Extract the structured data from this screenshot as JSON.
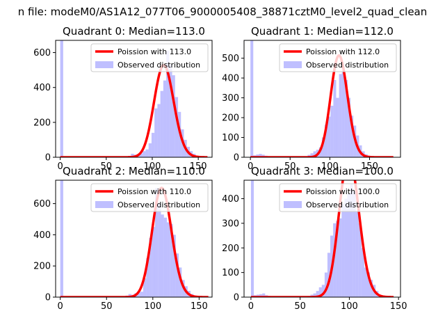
{
  "figure": {
    "suptitle": "n file: modeM0/AS1A12_077T06_9000005408_38871cztM0_level2_quad_clean"
  },
  "colors": {
    "hist": "#7f7fff",
    "hist_opacity": 0.5,
    "fit": "#ff0000"
  },
  "chart_data": [
    {
      "type": "bar",
      "title": "Quadrant 0: Median=113.0",
      "xlim": [
        -5,
        165
      ],
      "ylim": [
        0,
        670
      ],
      "xticks": [
        0,
        50,
        100,
        150
      ],
      "yticks": [
        0,
        200,
        400,
        600
      ],
      "legend": {
        "placement": "upper right",
        "entries": [
          "Poission with 113.0",
          "Observed distribution"
        ]
      },
      "series": [
        {
          "name": "Observed distribution",
          "bins": {
            "x": [
              0,
              3.2,
              6.4,
              9.6,
              12.8,
              16,
              19.2,
              22.4,
              25.6,
              28.8,
              32,
              35.2,
              38.4,
              41.6,
              44.8,
              48,
              51.2,
              54.4,
              57.6,
              60.8,
              64,
              67.2,
              70.4,
              73.6,
              76.8,
              80,
              83.2,
              86.4,
              89.6,
              92.8,
              96,
              99.2,
              102.4,
              105.6,
              108.8,
              112,
              115.2,
              118.4,
              121.6,
              124.8,
              128,
              131.2,
              134.4,
              137.6,
              140.8,
              144,
              147.2,
              150.4,
              153.6,
              156.8
            ],
            "width": 3.2,
            "values": [
              670,
              2,
              1,
              0,
              1,
              0,
              0,
              0,
              0,
              0,
              0,
              0,
              0,
              0,
              0,
              0,
              0,
              0,
              0,
              0,
              0,
              1,
              2,
              8,
              20,
              15,
              12,
              22,
              35,
              45,
              80,
              140,
              280,
              305,
              380,
              440,
              610,
              530,
              470,
              345,
              260,
              160,
              100,
              60,
              35,
              20,
              10,
              5,
              2,
              1
            ]
          }
        },
        {
          "name": "Poission with 113.0",
          "mean": 113.0,
          "x_range": [
            0,
            160
          ]
        }
      ]
    },
    {
      "type": "bar",
      "title": "Quadrant 1: Median=112.0",
      "xlim": [
        -8,
        189
      ],
      "ylim": [
        0,
        590
      ],
      "xticks": [
        0,
        50,
        100,
        150
      ],
      "yticks": [
        0,
        100,
        200,
        300,
        400,
        500
      ],
      "legend": {
        "placement": "upper right",
        "entries": [
          "Poission with 112.0",
          "Observed distribution"
        ]
      },
      "series": [
        {
          "name": "Observed distribution",
          "bins": {
            "x": [
              0,
              3.6,
              7.2,
              10.8,
              14.4,
              18,
              21.6,
              25.2,
              28.8,
              32.4,
              36,
              39.6,
              43.2,
              46.8,
              50.4,
              54,
              57.6,
              61.2,
              64.8,
              68.4,
              72,
              75.6,
              79.2,
              82.8,
              86.4,
              90,
              93.6,
              97.2,
              100.8,
              104.4,
              108,
              111.6,
              115.2,
              118.8,
              122.4,
              126,
              129.6,
              133.2,
              136.8,
              140.4,
              144,
              147.6,
              151.2,
              154.8,
              158.4,
              162,
              165.6,
              169.2,
              172.8,
              176.4
            ],
            "width": 3.6,
            "values": [
              590,
              10,
              14,
              17,
              13,
              8,
              5,
              3,
              1,
              1,
              0,
              0,
              0,
              0,
              0,
              0,
              0,
              0,
              0,
              2,
              12,
              20,
              30,
              38,
              50,
              100,
              165,
              205,
              260,
              390,
              300,
              420,
              430,
              390,
              300,
              210,
              160,
              110,
              60,
              30,
              15,
              8,
              4,
              2,
              1,
              1,
              0,
              0,
              0,
              0
            ]
          }
        },
        {
          "name": "Poission with 112.0",
          "mean": 112.0,
          "x_range": [
            0,
            180
          ]
        }
      ]
    },
    {
      "type": "bar",
      "title": "Quadrant 2: Median=110.0",
      "xlim": [
        -5,
        164
      ],
      "ylim": [
        0,
        750
      ],
      "xticks": [
        0,
        50,
        100,
        150
      ],
      "yticks": [
        0,
        200,
        400,
        600
      ],
      "legend": {
        "placement": "upper right",
        "entries": [
          "Poission with 110.0",
          "Observed distribution"
        ]
      },
      "series": [
        {
          "name": "Observed distribution",
          "bins": {
            "x": [
              0,
              3.2,
              6.4,
              9.6,
              12.8,
              16,
              19.2,
              22.4,
              25.6,
              28.8,
              32,
              35.2,
              38.4,
              41.6,
              44.8,
              48,
              51.2,
              54.4,
              57.6,
              60.8,
              64,
              67.2,
              70.4,
              73.6,
              76.8,
              80,
              83.2,
              86.4,
              89.6,
              92.8,
              96,
              99.2,
              102.4,
              105.6,
              108.8,
              112,
              115.2,
              118.4,
              121.6,
              124.8,
              128,
              131.2,
              134.4,
              137.6,
              140.8,
              144,
              147.2,
              150.4,
              153.6,
              156.8
            ],
            "width": 3.2,
            "values": [
              750,
              0,
              0,
              0,
              0,
              0,
              0,
              0,
              0,
              0,
              0,
              0,
              0,
              0,
              0,
              0,
              0,
              0,
              0,
              0,
              1,
              2,
              10,
              20,
              15,
              25,
              30,
              35,
              120,
              250,
              380,
              450,
              700,
              600,
              530,
              510,
              480,
              470,
              400,
              280,
              190,
              110,
              70,
              40,
              20,
              10,
              5,
              2,
              1,
              0
            ]
          }
        },
        {
          "name": "Poission with 110.0",
          "mean": 110.0,
          "x_range": [
            0,
            160
          ]
        }
      ]
    },
    {
      "type": "bar",
      "title": "Quadrant 3: Median=100.0",
      "xlim": [
        -7,
        152
      ],
      "ylim": [
        0,
        475
      ],
      "xticks": [
        0,
        50,
        100,
        150
      ],
      "yticks": [
        0,
        100,
        200,
        300,
        400
      ],
      "legend": {
        "placement": "upper right",
        "entries": [
          "Poission with 100.0",
          "Observed distribution"
        ]
      },
      "series": [
        {
          "name": "Observed distribution",
          "bins": {
            "x": [
              0,
              2.88,
              5.76,
              8.64,
              11.52,
              14.4,
              17.28,
              20.16,
              23.04,
              25.92,
              28.8,
              31.68,
              34.56,
              37.44,
              40.32,
              43.2,
              46.08,
              48.96,
              51.84,
              54.72,
              57.6,
              60.48,
              63.36,
              66.24,
              69.12,
              72,
              74.88,
              77.76,
              80.64,
              83.52,
              86.4,
              89.28,
              92.16,
              95.04,
              97.92,
              100.8,
              103.68,
              106.56,
              109.44,
              112.32,
              115.2,
              118.08,
              120.96,
              123.84,
              126.72,
              129.6,
              132.48,
              135.36,
              138.24,
              141.12
            ],
            "width": 2.88,
            "values": [
              475,
              8,
              10,
              12,
              15,
              8,
              5,
              3,
              2,
              1,
              0,
              0,
              0,
              0,
              0,
              0,
              0,
              0,
              0,
              2,
              5,
              10,
              15,
              25,
              40,
              50,
              100,
              180,
              250,
              300,
              310,
              320,
              380,
              400,
              420,
              460,
              430,
              350,
              300,
              200,
              120,
              100,
              70,
              50,
              25,
              10,
              5,
              2,
              1,
              0
            ]
          }
        },
        {
          "name": "Poission with 100.0",
          "mean": 100.0,
          "x_range": [
            0,
            145
          ]
        }
      ]
    }
  ]
}
